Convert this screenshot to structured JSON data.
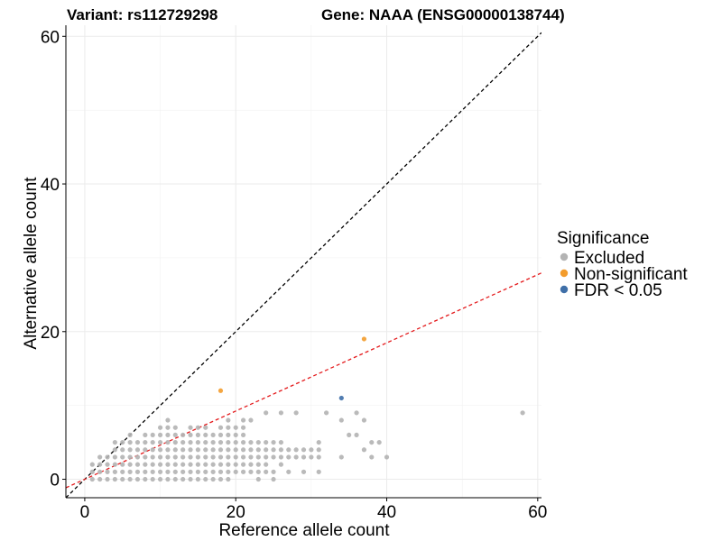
{
  "chart_data": {
    "type": "scatter",
    "title_left": "Variant: rs112729298",
    "title_right": "Gene: NAAA (ENSG00000138744)",
    "xlabel": "Reference allele count",
    "ylabel": "Alternative allele count",
    "xlim": [
      -2.5,
      60.5
    ],
    "ylim": [
      -2.5,
      61.5
    ],
    "xticks": [
      0,
      20,
      40,
      60
    ],
    "yticks": [
      0,
      20,
      40,
      60
    ],
    "grid": true,
    "legend": {
      "title": "Significance",
      "position": "right",
      "entries": [
        {
          "key": "excluded",
          "label": "Excluded",
          "color": "#b3b3b3"
        },
        {
          "key": "nonsig",
          "label": "Non-significant",
          "color": "#f39c2c"
        },
        {
          "key": "fdr",
          "label": "FDR < 0.05",
          "color": "#3f6fa8"
        }
      ]
    },
    "reference_lines": [
      {
        "name": "y = x",
        "slope": 1,
        "intercept": 0,
        "color": "#000000",
        "style": "dashed"
      },
      {
        "name": "fit",
        "slope": 0.462,
        "intercept": 0,
        "color": "#e41a1c",
        "style": "dashed"
      }
    ],
    "series": [
      {
        "key": "excluded",
        "color": "#b3b3b3",
        "points": [
          [
            1,
            0
          ],
          [
            1,
            1
          ],
          [
            1,
            2
          ],
          [
            2,
            0
          ],
          [
            2,
            1
          ],
          [
            2,
            2
          ],
          [
            2,
            3
          ],
          [
            3,
            0
          ],
          [
            3,
            1
          ],
          [
            3,
            2
          ],
          [
            3,
            3
          ],
          [
            4,
            0
          ],
          [
            4,
            1
          ],
          [
            4,
            2
          ],
          [
            4,
            3
          ],
          [
            4,
            4
          ],
          [
            4,
            5
          ],
          [
            5,
            0
          ],
          [
            5,
            1
          ],
          [
            5,
            2
          ],
          [
            5,
            3
          ],
          [
            5,
            4
          ],
          [
            5,
            5
          ],
          [
            6,
            0
          ],
          [
            6,
            1
          ],
          [
            6,
            2
          ],
          [
            6,
            3
          ],
          [
            6,
            4
          ],
          [
            6,
            5
          ],
          [
            6,
            6
          ],
          [
            7,
            0
          ],
          [
            7,
            1
          ],
          [
            7,
            2
          ],
          [
            7,
            3
          ],
          [
            7,
            4
          ],
          [
            7,
            5
          ],
          [
            8,
            0
          ],
          [
            8,
            1
          ],
          [
            8,
            2
          ],
          [
            8,
            3
          ],
          [
            8,
            4
          ],
          [
            8,
            5
          ],
          [
            8,
            6
          ],
          [
            9,
            0
          ],
          [
            9,
            1
          ],
          [
            9,
            2
          ],
          [
            9,
            3
          ],
          [
            9,
            4
          ],
          [
            9,
            5
          ],
          [
            9,
            6
          ],
          [
            10,
            0
          ],
          [
            10,
            1
          ],
          [
            10,
            2
          ],
          [
            10,
            3
          ],
          [
            10,
            4
          ],
          [
            10,
            5
          ],
          [
            10,
            6
          ],
          [
            10,
            7
          ],
          [
            11,
            0
          ],
          [
            11,
            1
          ],
          [
            11,
            2
          ],
          [
            11,
            3
          ],
          [
            11,
            4
          ],
          [
            11,
            5
          ],
          [
            11,
            6
          ],
          [
            11,
            7
          ],
          [
            11,
            8
          ],
          [
            12,
            0
          ],
          [
            12,
            1
          ],
          [
            12,
            2
          ],
          [
            12,
            3
          ],
          [
            12,
            4
          ],
          [
            12,
            5
          ],
          [
            12,
            6
          ],
          [
            12,
            7
          ],
          [
            13,
            0
          ],
          [
            13,
            1
          ],
          [
            13,
            2
          ],
          [
            13,
            3
          ],
          [
            13,
            4
          ],
          [
            13,
            5
          ],
          [
            13,
            6
          ],
          [
            14,
            0
          ],
          [
            14,
            1
          ],
          [
            14,
            2
          ],
          [
            14,
            3
          ],
          [
            14,
            4
          ],
          [
            14,
            5
          ],
          [
            14,
            6
          ],
          [
            14,
            7
          ],
          [
            15,
            0
          ],
          [
            15,
            1
          ],
          [
            15,
            2
          ],
          [
            15,
            3
          ],
          [
            15,
            4
          ],
          [
            15,
            5
          ],
          [
            15,
            6
          ],
          [
            15,
            7
          ],
          [
            16,
            0
          ],
          [
            16,
            1
          ],
          [
            16,
            2
          ],
          [
            16,
            3
          ],
          [
            16,
            4
          ],
          [
            16,
            5
          ],
          [
            16,
            6
          ],
          [
            16,
            7
          ],
          [
            17,
            0
          ],
          [
            17,
            1
          ],
          [
            17,
            2
          ],
          [
            17,
            3
          ],
          [
            17,
            4
          ],
          [
            17,
            5
          ],
          [
            17,
            6
          ],
          [
            18,
            0
          ],
          [
            18,
            1
          ],
          [
            18,
            2
          ],
          [
            18,
            3
          ],
          [
            18,
            4
          ],
          [
            18,
            5
          ],
          [
            18,
            6
          ],
          [
            18,
            7
          ],
          [
            19,
            0
          ],
          [
            19,
            1
          ],
          [
            19,
            2
          ],
          [
            19,
            3
          ],
          [
            19,
            4
          ],
          [
            19,
            5
          ],
          [
            19,
            6
          ],
          [
            19,
            7
          ],
          [
            19,
            8
          ],
          [
            20,
            1
          ],
          [
            20,
            2
          ],
          [
            20,
            3
          ],
          [
            20,
            4
          ],
          [
            20,
            5
          ],
          [
            20,
            6
          ],
          [
            20,
            7
          ],
          [
            21,
            1
          ],
          [
            21,
            2
          ],
          [
            21,
            3
          ],
          [
            21,
            4
          ],
          [
            21,
            5
          ],
          [
            21,
            6
          ],
          [
            21,
            7
          ],
          [
            21,
            8
          ],
          [
            22,
            1
          ],
          [
            22,
            2
          ],
          [
            22,
            3
          ],
          [
            22,
            4
          ],
          [
            22,
            5
          ],
          [
            22,
            8
          ],
          [
            23,
            0
          ],
          [
            23,
            1
          ],
          [
            23,
            2
          ],
          [
            23,
            3
          ],
          [
            23,
            4
          ],
          [
            23,
            5
          ],
          [
            24,
            1
          ],
          [
            24,
            2
          ],
          [
            24,
            3
          ],
          [
            24,
            4
          ],
          [
            24,
            5
          ],
          [
            24,
            9
          ],
          [
            25,
            0
          ],
          [
            25,
            1
          ],
          [
            25,
            3
          ],
          [
            25,
            4
          ],
          [
            25,
            5
          ],
          [
            26,
            2
          ],
          [
            26,
            3
          ],
          [
            26,
            4
          ],
          [
            26,
            5
          ],
          [
            26,
            9
          ],
          [
            27,
            1
          ],
          [
            27,
            3
          ],
          [
            27,
            4
          ],
          [
            28,
            3
          ],
          [
            28,
            4
          ],
          [
            28,
            9
          ],
          [
            29,
            1
          ],
          [
            29,
            3
          ],
          [
            29,
            4
          ],
          [
            30,
            3
          ],
          [
            30,
            4
          ],
          [
            31,
            1
          ],
          [
            31,
            3
          ],
          [
            31,
            4
          ],
          [
            31,
            5
          ],
          [
            32,
            9
          ],
          [
            34,
            3
          ],
          [
            34,
            8
          ],
          [
            35,
            6
          ],
          [
            36,
            6
          ],
          [
            36,
            9
          ],
          [
            37,
            4
          ],
          [
            37,
            8
          ],
          [
            38,
            5
          ],
          [
            39,
            5
          ],
          [
            38,
            3
          ],
          [
            40,
            3
          ],
          [
            58,
            9
          ]
        ]
      },
      {
        "key": "nonsig",
        "color": "#f39c2c",
        "points": [
          [
            18,
            12
          ],
          [
            37,
            19
          ]
        ]
      },
      {
        "key": "fdr",
        "color": "#3f6fa8",
        "points": [
          [
            34,
            11
          ]
        ]
      }
    ]
  }
}
